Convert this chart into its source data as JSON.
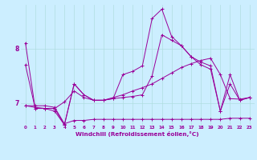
{
  "xlabel": "Windchill (Refroidissement éolien,°C)",
  "bg_color": "#cceeff",
  "line_color": "#990099",
  "grid_color": "#b0dde0",
  "yticks": [
    7,
    8
  ],
  "xticks": [
    0,
    1,
    2,
    3,
    4,
    5,
    6,
    7,
    8,
    9,
    10,
    11,
    12,
    13,
    14,
    15,
    16,
    17,
    18,
    19,
    20,
    21,
    22,
    23
  ],
  "ylim": [
    6.6,
    8.8
  ],
  "xlim": [
    -0.5,
    23.5
  ],
  "series1_x": [
    0,
    1,
    2,
    3,
    4,
    5,
    6,
    7,
    8,
    9,
    10,
    11,
    12,
    13,
    14,
    15,
    16,
    17,
    18,
    19,
    20,
    21,
    22,
    23
  ],
  "series1_y": [
    7.7,
    6.9,
    6.9,
    6.85,
    6.6,
    7.35,
    7.15,
    7.05,
    7.05,
    7.08,
    7.1,
    7.12,
    7.15,
    7.5,
    8.25,
    8.15,
    8.05,
    7.85,
    7.7,
    7.62,
    6.85,
    7.35,
    7.05,
    7.1
  ],
  "series2_x": [
    0,
    1,
    2,
    3,
    4,
    5,
    6,
    7,
    8,
    9,
    10,
    11,
    12,
    13,
    14,
    15,
    16,
    17,
    18,
    19,
    20,
    21,
    22,
    23
  ],
  "series2_y": [
    6.95,
    6.95,
    6.95,
    6.92,
    6.62,
    6.68,
    6.68,
    6.7,
    6.7,
    6.7,
    6.7,
    6.7,
    6.7,
    6.7,
    6.7,
    6.7,
    6.7,
    6.7,
    6.7,
    6.7,
    6.7,
    6.72,
    6.72,
    6.72
  ],
  "series3_x": [
    0,
    1,
    2,
    3,
    4,
    5,
    6,
    7,
    8,
    9,
    10,
    11,
    12,
    13,
    14,
    15,
    16,
    17,
    18,
    19,
    20,
    21,
    22,
    23
  ],
  "series3_y": [
    6.95,
    6.92,
    6.9,
    6.9,
    7.02,
    7.22,
    7.1,
    7.05,
    7.05,
    7.1,
    7.15,
    7.22,
    7.28,
    7.35,
    7.45,
    7.55,
    7.65,
    7.72,
    7.78,
    7.82,
    7.52,
    7.08,
    7.07,
    7.1
  ],
  "series4_x": [
    0,
    1,
    2,
    3,
    4,
    5,
    6,
    7,
    8,
    9,
    10,
    11,
    12,
    13,
    14,
    15,
    16,
    17,
    18,
    19,
    20,
    21,
    22,
    23
  ],
  "series4_y": [
    8.1,
    6.9,
    6.9,
    6.9,
    6.6,
    7.35,
    7.15,
    7.05,
    7.05,
    7.08,
    7.52,
    7.58,
    7.68,
    8.55,
    8.72,
    8.22,
    8.05,
    7.85,
    7.75,
    7.68,
    6.85,
    7.52,
    7.05,
    7.1
  ],
  "figwidth": 3.2,
  "figheight": 2.0,
  "dpi": 100
}
